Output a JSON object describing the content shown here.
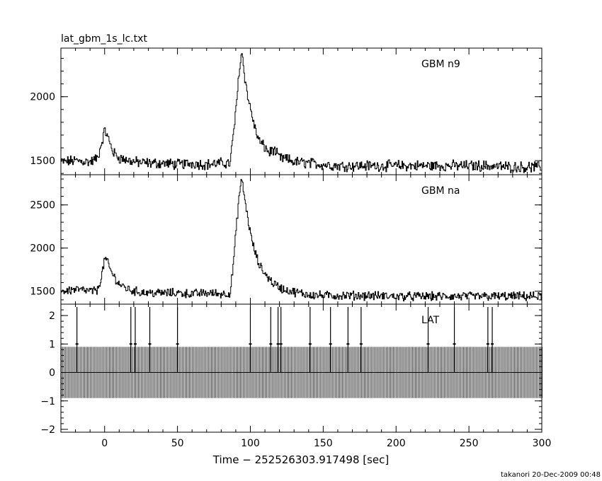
{
  "header": {
    "file_title": "lat_gbm_1s_lc.txt"
  },
  "footer": {
    "user_stamp": "takanori 20-Dec-2009 00:48"
  },
  "chart_data": [
    {
      "type": "line",
      "panel": "top",
      "label": "GBM n9",
      "xlim": [
        -30,
        300
      ],
      "ylim": [
        1390,
        2380
      ],
      "yticks": [
        1500,
        2000
      ],
      "ytick_labels": [
        "1500",
        "2000"
      ],
      "series": [
        {
          "x": [
            -30,
            -20,
            -10,
            -5,
            0,
            3,
            6,
            10,
            20,
            30,
            40,
            50,
            60,
            70,
            80,
            86,
            88,
            90,
            92,
            94,
            96,
            98,
            100,
            103,
            106,
            110,
            113,
            115,
            118,
            120,
            125,
            130,
            140,
            150,
            160,
            180,
            200,
            220,
            240,
            260,
            280,
            300
          ],
          "y": [
            1490,
            1500,
            1490,
            1520,
            1740,
            1650,
            1560,
            1520,
            1490,
            1480,
            1480,
            1470,
            1480,
            1470,
            1480,
            1480,
            1700,
            1900,
            2200,
            2350,
            2150,
            2000,
            1900,
            1750,
            1650,
            1600,
            1560,
            1590,
            1550,
            1520,
            1510,
            1490,
            1480,
            1470,
            1460,
            1460,
            1460,
            1460,
            1460,
            1460,
            1450,
            1450
          ]
        }
      ]
    },
    {
      "type": "line",
      "panel": "middle",
      "label": "GBM na",
      "xlim": [
        -30,
        300
      ],
      "ylim": [
        1350,
        2850
      ],
      "yticks": [
        1500,
        2000,
        2500
      ],
      "ytick_labels": [
        "1500",
        "2000",
        "2500"
      ],
      "series": [
        {
          "x": [
            -30,
            -20,
            -10,
            -5,
            -2,
            0,
            2,
            5,
            10,
            15,
            20,
            30,
            40,
            50,
            60,
            70,
            80,
            86,
            88,
            90,
            92,
            94,
            96,
            98,
            100,
            103,
            106,
            110,
            115,
            120,
            125,
            130,
            140,
            150,
            160,
            180,
            200,
            220,
            240,
            260,
            280,
            300
          ],
          "y": [
            1500,
            1520,
            1500,
            1510,
            1700,
            1890,
            1820,
            1700,
            1580,
            1530,
            1500,
            1480,
            1480,
            1480,
            1470,
            1480,
            1470,
            1480,
            1800,
            2200,
            2600,
            2800,
            2550,
            2350,
            2150,
            1950,
            1800,
            1700,
            1600,
            1540,
            1510,
            1490,
            1460,
            1450,
            1450,
            1450,
            1440,
            1440,
            1440,
            1440,
            1440,
            1440
          ]
        }
      ]
    },
    {
      "type": "bar",
      "panel": "bottom",
      "label": "LAT",
      "xlim": [
        -30,
        300
      ],
      "ylim": [
        -2.1,
        2.4
      ],
      "yticks": [
        -2,
        -1,
        0,
        1,
        2
      ],
      "ytick_labels": [
        "−2",
        "−1",
        "0",
        "1",
        "2"
      ],
      "xticks": [
        0,
        50,
        100,
        150,
        200,
        250,
        300
      ],
      "xtick_labels": [
        "0",
        "50",
        "100",
        "150",
        "200",
        "250",
        "300"
      ],
      "xlabel": "Time − 252526303.917498 [sec]",
      "bin_width": 1,
      "bin_start": -30,
      "bin_end": 300,
      "bin_value": 0,
      "bin_error": 0.9,
      "events": [
        -19,
        18,
        21,
        31,
        50,
        100,
        114,
        119,
        121,
        141,
        155,
        167,
        176,
        222,
        240,
        263,
        266
      ],
      "event_value": 1,
      "event_error": 1.0
    }
  ]
}
